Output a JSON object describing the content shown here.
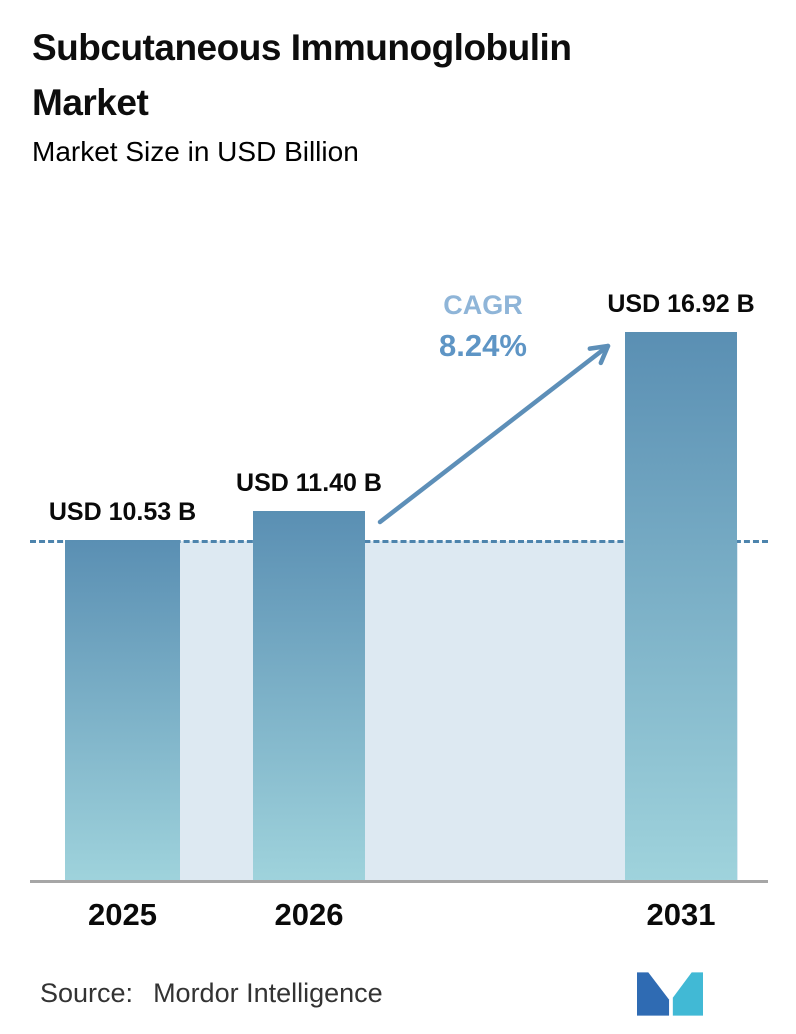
{
  "header": {
    "title": "Subcutaneous Immunoglobulin Market",
    "subtitle": "Market Size in USD Billion"
  },
  "chart_data": {
    "type": "bar",
    "title": "Subcutaneous Immunoglobulin Market",
    "subtitle": "Market Size in USD Billion",
    "categories": [
      "2025",
      "2026",
      "2031"
    ],
    "values": [
      10.53,
      11.4,
      16.92
    ],
    "value_labels": [
      "USD 10.53 B",
      "USD 11.40 B",
      "USD 16.92 B"
    ],
    "xlabel": "",
    "ylabel": "Market Size in USD Billion",
    "ylim": [
      0,
      18.5
    ],
    "grid": false,
    "legend": "none",
    "baseline_value": 10.53,
    "cagr": {
      "label": "CAGR",
      "value": "8.24%"
    },
    "annotations": [
      "CAGR 8.24% growth arrow from 2026 bar to 2031 bar",
      "dashed horizontal line at 2025 level",
      "light blue forecast region between 2025 and 2031 bars"
    ]
  },
  "footer": {
    "source_label": "Source:",
    "source_value": "Mordor Intelligence",
    "logo": "mordor-intelligence-logo"
  },
  "colors": {
    "bar_top": "#5a8fb3",
    "bar_bottom": "#9fd3dc",
    "forecast_region": "#dde9f2",
    "dashed_line": "#4d84ad",
    "cagr_label": "#8fb5d8",
    "cagr_value": "#5e95c5",
    "arrow": "#5d8fb8",
    "axis": "#a6a6a6",
    "logo_blue": "#2f6bb3",
    "logo_teal": "#41b9d5"
  }
}
